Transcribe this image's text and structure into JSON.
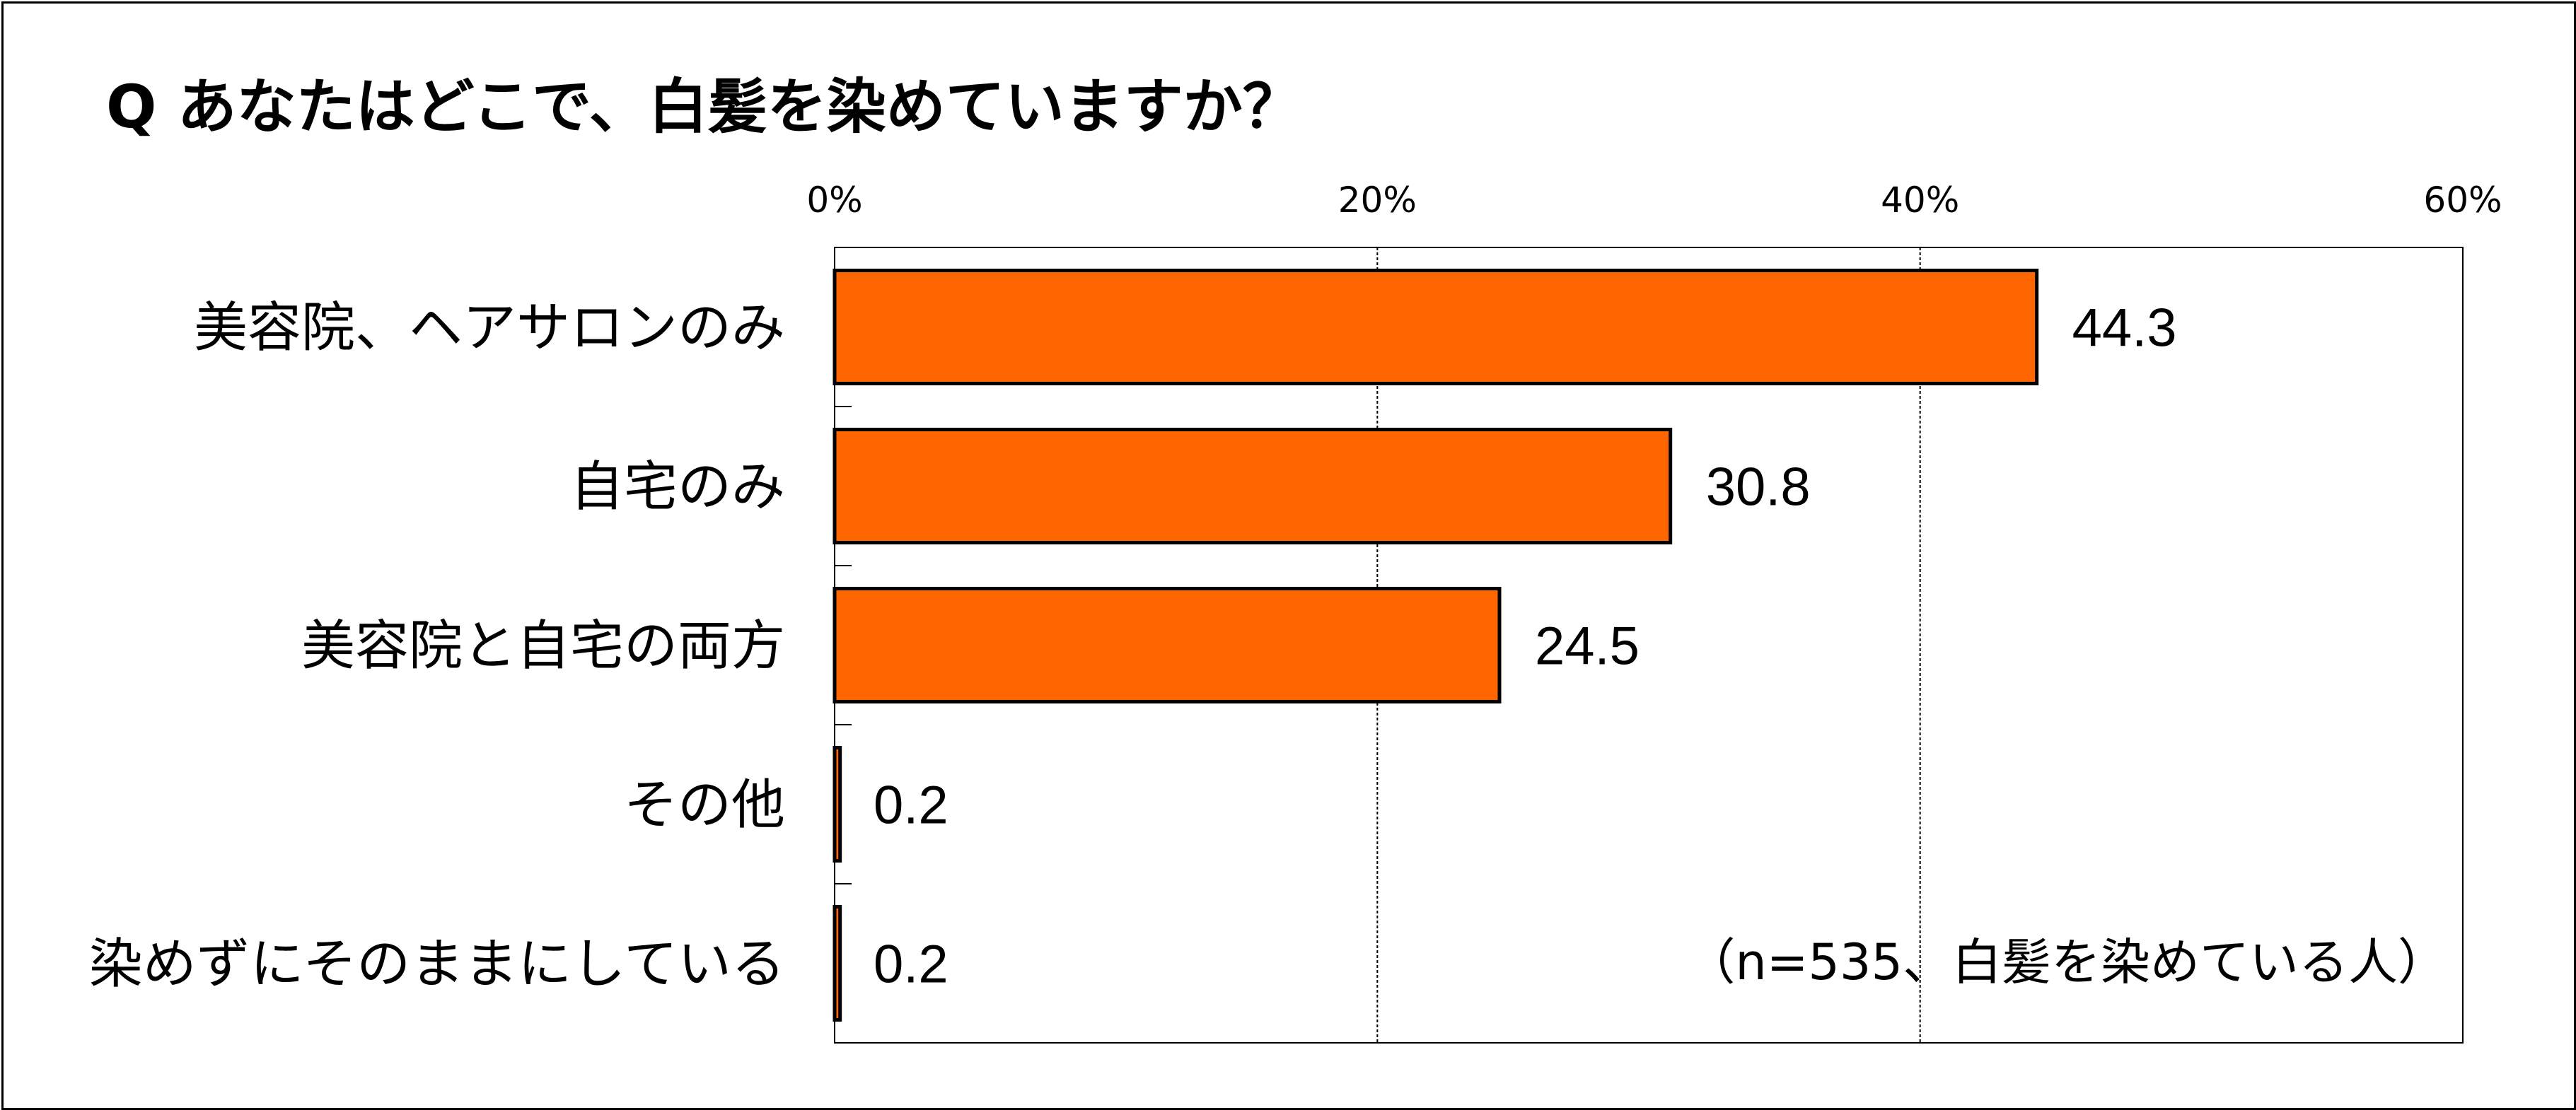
{
  "chart_data": {
    "type": "bar",
    "orientation": "horizontal",
    "title": "Q あなたはどこで、白髪を染めていますか？",
    "categories": [
      "美容院、ヘアサロンのみ",
      "自宅のみ",
      "美容院と自宅の両方",
      "その他",
      "染めずにそのままにしている"
    ],
    "values": [
      44.3,
      30.8,
      24.5,
      0.2,
      0.2
    ],
    "value_labels": [
      "44.3",
      "30.8",
      "24.5",
      "0.2",
      "0.2"
    ],
    "xlim": [
      0,
      60
    ],
    "ticks": [
      0,
      20,
      40,
      60
    ],
    "tick_labels": [
      "0%",
      "20%",
      "40%",
      "60%"
    ],
    "grid": true,
    "note": "（n=535、白髪を染めている人）",
    "colors": {
      "bar": "#FF6600",
      "bar_stroke": "#000000",
      "grid": "#000000"
    }
  }
}
